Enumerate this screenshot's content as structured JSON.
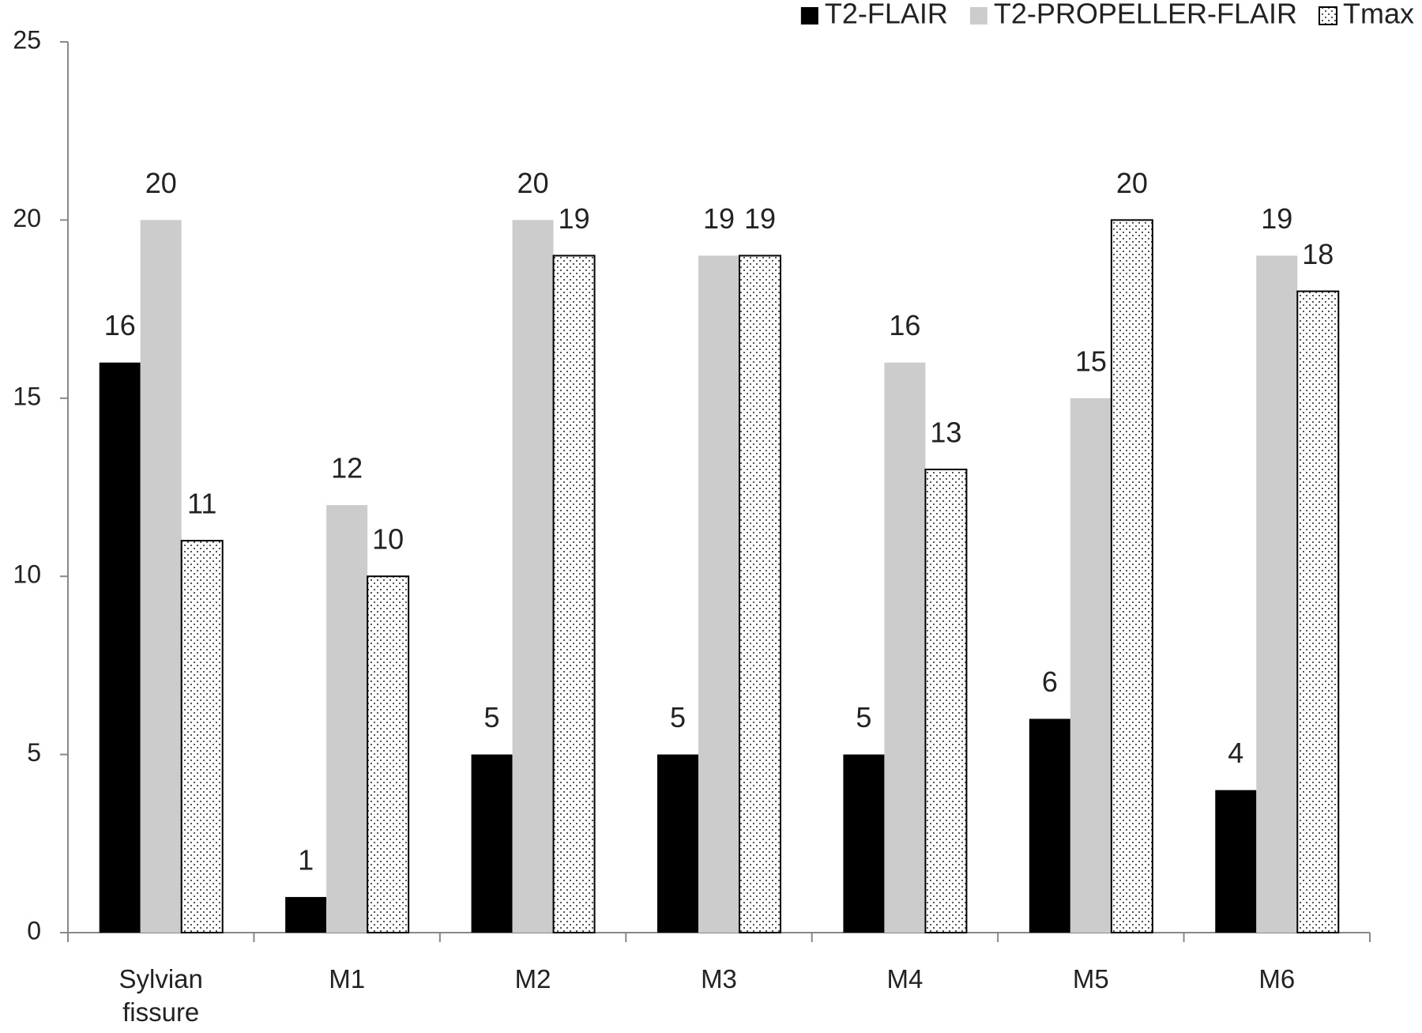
{
  "chart_data": {
    "type": "bar",
    "categories": [
      "Sylvian fissure",
      "M1",
      "M2",
      "M3",
      "M4",
      "M5",
      "M6"
    ],
    "series": [
      {
        "name": "T2-FLAIR",
        "color": "#000000",
        "values": [
          16,
          1,
          5,
          5,
          5,
          6,
          4
        ]
      },
      {
        "name": "T2-PROPELLER-FLAIR",
        "color": "#cccccc",
        "values": [
          20,
          12,
          20,
          19,
          16,
          15,
          19
        ]
      },
      {
        "name": "Tmax",
        "color": "dotted",
        "values": [
          11,
          10,
          19,
          19,
          13,
          20,
          18
        ]
      }
    ],
    "ylim": [
      0,
      25
    ],
    "yticks": [
      0,
      5,
      10,
      15,
      20,
      25
    ],
    "grid": false,
    "legend": "upper right"
  }
}
